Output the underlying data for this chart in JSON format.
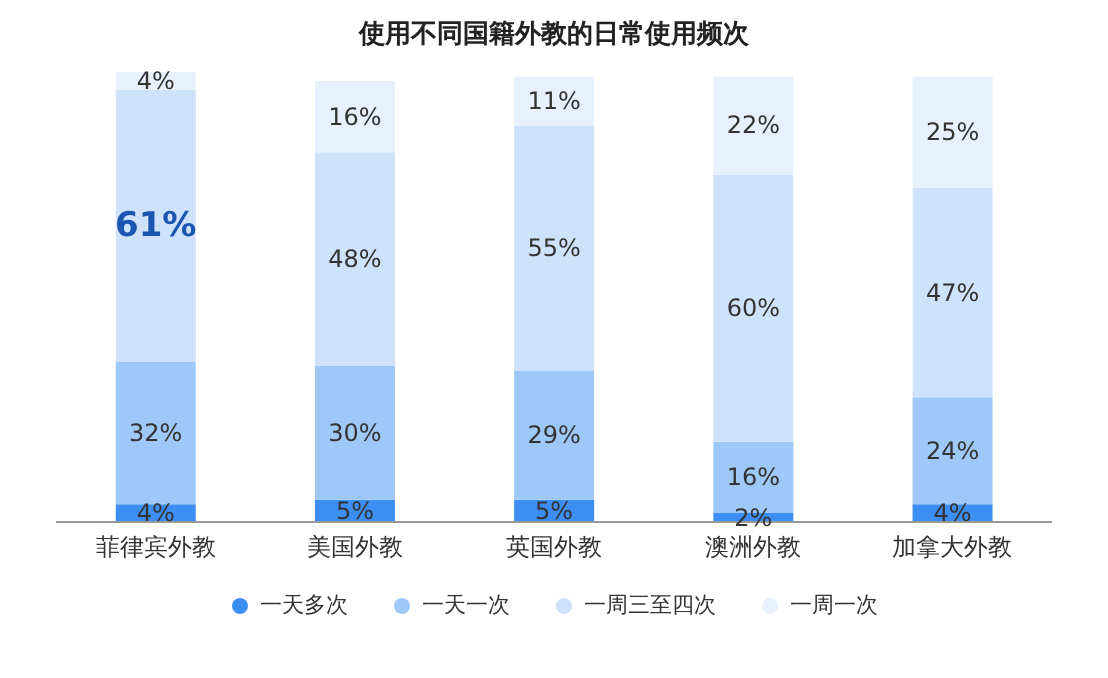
{
  "chart_data": {
    "type": "bar",
    "title": "使用不同国籍外教的日常使用频次",
    "categories": [
      "菲律宾外教",
      "美国外教",
      "英国外教",
      "澳洲外教",
      "加拿大外教"
    ],
    "stacked": true,
    "ylim": [
      0,
      101
    ],
    "tick_labels": "x",
    "legend": "bottom",
    "marker": "circle",
    "series": [
      {
        "name": "一天多次",
        "color": "#3d8ef2",
        "values": [
          4,
          5,
          5,
          2,
          4
        ],
        "value_labels": [
          "4%",
          "5%",
          "5%",
          "2%",
          "4%"
        ]
      },
      {
        "name": "一天一次",
        "color": "#9dc8f7",
        "values": [
          32,
          30,
          29,
          16,
          24
        ],
        "value_labels": [
          "32%",
          "30%",
          "29%",
          "16%",
          "24%"
        ]
      },
      {
        "name": "一周三至四次",
        "color": "#cfe2fb",
        "values": [
          61,
          48,
          55,
          60,
          47
        ],
        "value_labels": [
          "61%",
          "48%",
          "55%",
          "60%",
          "47%"
        ]
      },
      {
        "name": "一周一次",
        "color": "#e7f1fd",
        "values": [
          4,
          16,
          11,
          22,
          25
        ],
        "value_labels": [
          "4%",
          "16%",
          "11%",
          "22%",
          "25%"
        ]
      }
    ]
  }
}
